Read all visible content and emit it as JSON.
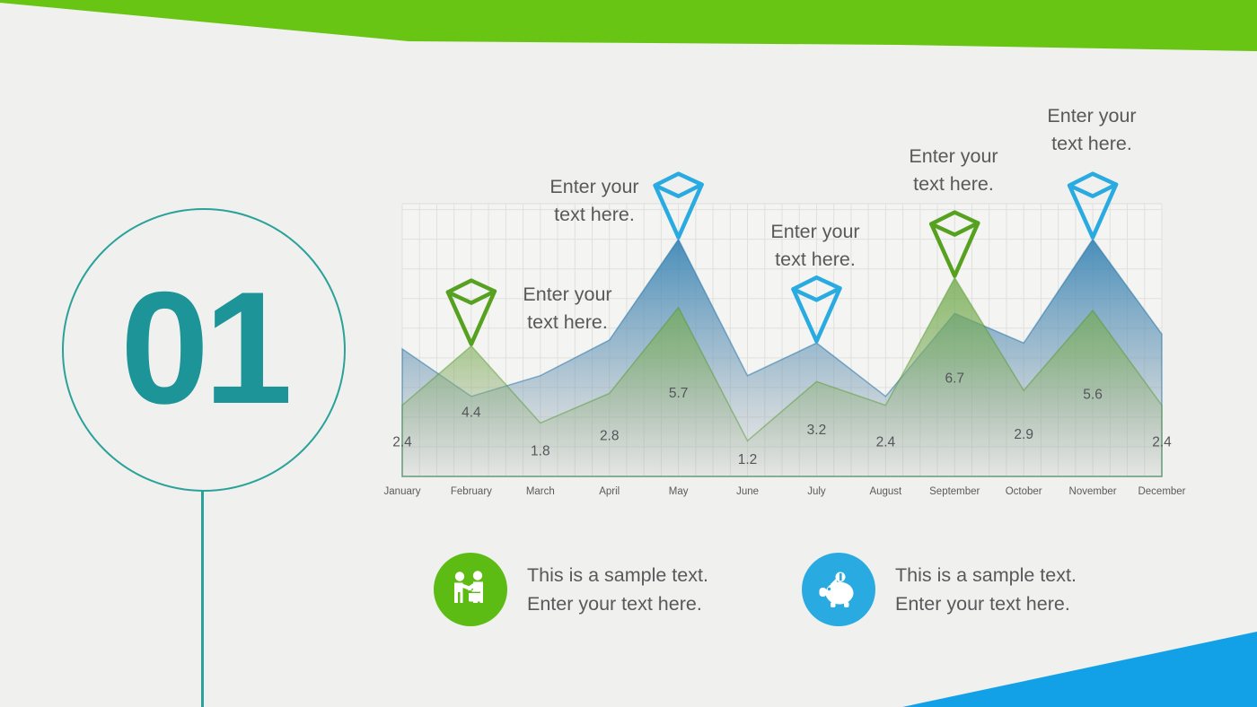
{
  "slide": {
    "number": "01"
  },
  "colors": {
    "banner_green": "#69c514",
    "corner_blue": "#12a1e6",
    "teal": "#1c9498",
    "marker_green": "#57a121",
    "marker_blue": "#29abe2",
    "text_gray": "#595959"
  },
  "chart_data": {
    "type": "area",
    "title": "",
    "xlabel": "",
    "ylabel": "",
    "categories": [
      "January",
      "February",
      "March",
      "April",
      "May",
      "June",
      "July",
      "August",
      "September",
      "October",
      "November",
      "December"
    ],
    "series": [
      {
        "name": "blue-series",
        "color": "#1b76af",
        "values": [
          4.3,
          2.7,
          3.4,
          4.6,
          8.0,
          3.4,
          4.5,
          2.7,
          5.5,
          4.5,
          8.0,
          4.8
        ]
      },
      {
        "name": "green-series",
        "color": "#4a9922",
        "values": [
          2.4,
          4.4,
          1.8,
          2.8,
          5.7,
          1.2,
          3.2,
          2.4,
          6.7,
          2.9,
          5.6,
          2.4
        ],
        "data_labels": [
          "2.4",
          "4.4",
          "1.8",
          "2.8",
          "5.7",
          "1.2",
          "3.2",
          "2.4",
          "6.7",
          "2.9",
          "5.6",
          "2.4"
        ]
      }
    ],
    "ylim": [
      0,
      9.2
    ],
    "grid": true,
    "legend": false,
    "markers": [
      {
        "month": "February",
        "series": "green-series",
        "callout": {
          "line1": "Enter your",
          "line2": "text here."
        }
      },
      {
        "month": "May",
        "series": "blue-series",
        "callout": {
          "line1": "Enter your",
          "line2": "text here."
        }
      },
      {
        "month": "July",
        "series": "blue-series",
        "callout": {
          "line1": "Enter your",
          "line2": "text here."
        }
      },
      {
        "month": "September",
        "series": "green-series",
        "callout": {
          "line1": "Enter your",
          "line2": "text here."
        }
      },
      {
        "month": "November",
        "series": "blue-series",
        "callout": {
          "line1": "Enter your",
          "line2": "text here."
        }
      }
    ]
  },
  "features": [
    {
      "icon": "handshake-icon",
      "line1": "This is a sample text.",
      "line2": "Enter your text here."
    },
    {
      "icon": "piggy-bank-icon",
      "line1": "This is a sample text.",
      "line2": "Enter your text here."
    }
  ]
}
